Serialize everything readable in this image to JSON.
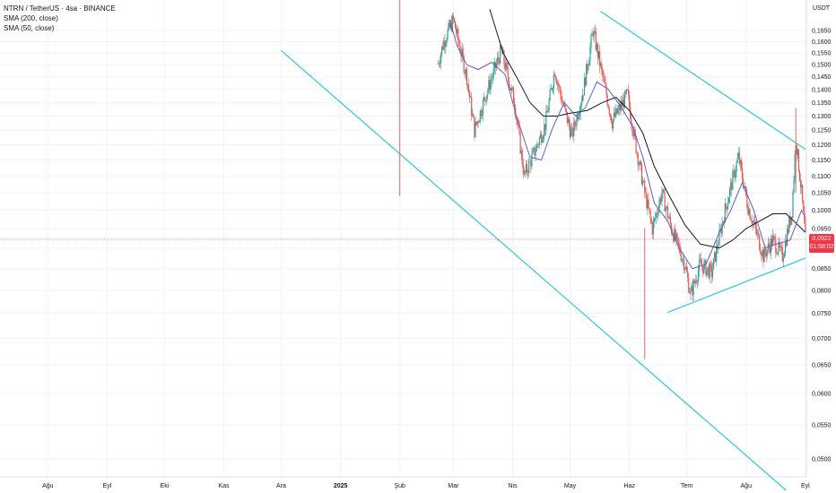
{
  "legend": {
    "symbol": "NTRN / TetherUS · 4sa · BINANCE",
    "sma200": "SMA (200, close)",
    "sma50": "SMA (50, close)"
  },
  "price_axis_unit": "USDT",
  "last_price": {
    "value": "0,0922",
    "countdown": "01:58:02"
  },
  "colors": {
    "up": "#26a69a",
    "down": "#ef5350",
    "sma200": "#131722",
    "sma50": "#5b5fc7",
    "trendline": "#2ec7e0",
    "price_line": "#f23645"
  },
  "chart_data": {
    "type": "candlestick",
    "x_ticks": [
      "Ağu",
      "Eyl",
      "Eki",
      "Kas",
      "Ara",
      "2025",
      "Şub",
      "Mar",
      "Nis",
      "May",
      "Haz",
      "Tem",
      "Ağu",
      "Eyl"
    ],
    "y_ticks": [
      "0,1650",
      "0,1600",
      "0,1550",
      "0,1500",
      "0,1450",
      "0,1400",
      "0,1350",
      "0,1300",
      "0,1250",
      "0,1200",
      "0,1150",
      "0,1100",
      "0,1050",
      "0,1000",
      "0,0950",
      "0,0900",
      "0,0850",
      "0,0800",
      "0,0750",
      "0,0700",
      "0,0650",
      "0,0600",
      "0,0550",
      "0,0500"
    ],
    "y_range": [
      0.0455,
      0.1735
    ],
    "y_scale": "log",
    "close_path": [
      {
        "t": "2025-02-01",
        "p": 0.184
      },
      {
        "t": "2025-02-03",
        "p": 0.104
      },
      {
        "t": "2025-02-24",
        "p": 0.16
      },
      {
        "t": "2025-03-01",
        "p": 0.17
      },
      {
        "t": "2025-03-08",
        "p": 0.145
      },
      {
        "t": "2025-03-12",
        "p": 0.125
      },
      {
        "t": "2025-03-18",
        "p": 0.138
      },
      {
        "t": "2025-03-26",
        "p": 0.156
      },
      {
        "t": "2025-04-02",
        "p": 0.135
      },
      {
        "t": "2025-04-07",
        "p": 0.11
      },
      {
        "t": "2025-04-12",
        "p": 0.117
      },
      {
        "t": "2025-04-18",
        "p": 0.127
      },
      {
        "t": "2025-04-23",
        "p": 0.148
      },
      {
        "t": "2025-04-27",
        "p": 0.135
      },
      {
        "t": "2025-05-02",
        "p": 0.123
      },
      {
        "t": "2025-05-08",
        "p": 0.14
      },
      {
        "t": "2025-05-13",
        "p": 0.165
      },
      {
        "t": "2025-05-18",
        "p": 0.145
      },
      {
        "t": "2025-05-23",
        "p": 0.128
      },
      {
        "t": "2025-05-31",
        "p": 0.138
      },
      {
        "t": "2025-06-04",
        "p": 0.121
      },
      {
        "t": "2025-06-09",
        "p": 0.105
      },
      {
        "t": "2025-06-13",
        "p": 0.095
      },
      {
        "t": "2025-06-18",
        "p": 0.105
      },
      {
        "t": "2025-06-23",
        "p": 0.095
      },
      {
        "t": "2025-06-30",
        "p": 0.086
      },
      {
        "t": "2025-07-03",
        "p": 0.079
      },
      {
        "t": "2025-07-08",
        "p": 0.086
      },
      {
        "t": "2025-07-14",
        "p": 0.084
      },
      {
        "t": "2025-07-21",
        "p": 0.1
      },
      {
        "t": "2025-07-28",
        "p": 0.116
      },
      {
        "t": "2025-08-02",
        "p": 0.101
      },
      {
        "t": "2025-08-07",
        "p": 0.093
      },
      {
        "t": "2025-08-10",
        "p": 0.088
      },
      {
        "t": "2025-08-15",
        "p": 0.092
      },
      {
        "t": "2025-08-20",
        "p": 0.088
      },
      {
        "t": "2025-08-25",
        "p": 0.1
      },
      {
        "t": "2025-08-27",
        "p": 0.122
      },
      {
        "t": "2025-08-30",
        "p": 0.105
      },
      {
        "t": "2025-09-01",
        "p": 0.0922
      }
    ],
    "sma200": [
      {
        "t": "2025-03-20",
        "p": 0.175
      },
      {
        "t": "2025-03-27",
        "p": 0.155
      },
      {
        "t": "2025-04-03",
        "p": 0.145
      },
      {
        "t": "2025-04-10",
        "p": 0.135
      },
      {
        "t": "2025-04-17",
        "p": 0.13
      },
      {
        "t": "2025-04-24",
        "p": 0.13
      },
      {
        "t": "2025-05-01",
        "p": 0.131
      },
      {
        "t": "2025-05-10",
        "p": 0.132
      },
      {
        "t": "2025-05-18",
        "p": 0.135
      },
      {
        "t": "2025-05-25",
        "p": 0.137
      },
      {
        "t": "2025-06-01",
        "p": 0.132
      },
      {
        "t": "2025-06-08",
        "p": 0.124
      },
      {
        "t": "2025-06-14",
        "p": 0.113
      },
      {
        "t": "2025-06-21",
        "p": 0.105
      },
      {
        "t": "2025-06-30",
        "p": 0.096
      },
      {
        "t": "2025-07-08",
        "p": 0.091
      },
      {
        "t": "2025-07-18",
        "p": 0.09
      },
      {
        "t": "2025-07-25",
        "p": 0.092
      },
      {
        "t": "2025-08-01",
        "p": 0.095
      },
      {
        "t": "2025-08-08",
        "p": 0.097
      },
      {
        "t": "2025-08-15",
        "p": 0.099
      },
      {
        "t": "2025-08-22",
        "p": 0.099
      },
      {
        "t": "2025-08-28",
        "p": 0.096
      },
      {
        "t": "2025-09-01",
        "p": 0.094
      }
    ],
    "sma50": [
      {
        "t": "2025-02-27",
        "p": 0.17
      },
      {
        "t": "2025-03-03",
        "p": 0.158
      },
      {
        "t": "2025-03-08",
        "p": 0.15
      },
      {
        "t": "2025-03-14",
        "p": 0.148
      },
      {
        "t": "2025-03-21",
        "p": 0.151
      },
      {
        "t": "2025-03-28",
        "p": 0.146
      },
      {
        "t": "2025-04-03",
        "p": 0.13
      },
      {
        "t": "2025-04-10",
        "p": 0.116
      },
      {
        "t": "2025-04-16",
        "p": 0.115
      },
      {
        "t": "2025-04-22",
        "p": 0.126
      },
      {
        "t": "2025-04-28",
        "p": 0.135
      },
      {
        "t": "2025-05-04",
        "p": 0.13
      },
      {
        "t": "2025-05-09",
        "p": 0.133
      },
      {
        "t": "2025-05-15",
        "p": 0.143
      },
      {
        "t": "2025-05-21",
        "p": 0.14
      },
      {
        "t": "2025-05-28",
        "p": 0.133
      },
      {
        "t": "2025-06-03",
        "p": 0.126
      },
      {
        "t": "2025-06-08",
        "p": 0.116
      },
      {
        "t": "2025-06-14",
        "p": 0.102
      },
      {
        "t": "2025-06-21",
        "p": 0.097
      },
      {
        "t": "2025-06-27",
        "p": 0.09
      },
      {
        "t": "2025-07-04",
        "p": 0.085
      },
      {
        "t": "2025-07-11",
        "p": 0.086
      },
      {
        "t": "2025-07-18",
        "p": 0.094
      },
      {
        "t": "2025-07-24",
        "p": 0.1
      },
      {
        "t": "2025-07-30",
        "p": 0.108
      },
      {
        "t": "2025-08-05",
        "p": 0.1
      },
      {
        "t": "2025-08-11",
        "p": 0.09
      },
      {
        "t": "2025-08-17",
        "p": 0.091
      },
      {
        "t": "2025-08-24",
        "p": 0.092
      },
      {
        "t": "2025-08-30",
        "p": 0.1
      },
      {
        "t": "2025-09-01",
        "p": 0.098
      }
    ],
    "long_wicks": [
      {
        "t": "2025-02-01",
        "high": 0.184,
        "low": 0.104
      },
      {
        "t": "2025-06-09",
        "high": 0.095,
        "low": 0.066
      },
      {
        "t": "2025-08-27",
        "high": 0.133,
        "low": 0.105
      }
    ],
    "trendlines": [
      {
        "from": {
          "t": "2024-12-01",
          "p": 0.156
        },
        "to": {
          "t": "2025-08-22",
          "p": 0.0458
        }
      },
      {
        "from": {
          "t": "2025-05-17",
          "p": 0.174
        },
        "to": {
          "t": "2025-09-01",
          "p": 0.1185
        }
      },
      {
        "from": {
          "t": "2025-06-21",
          "p": 0.0752
        },
        "to": {
          "t": "2025-09-01",
          "p": 0.0875
        }
      }
    ],
    "last_price_line": 0.0922
  }
}
